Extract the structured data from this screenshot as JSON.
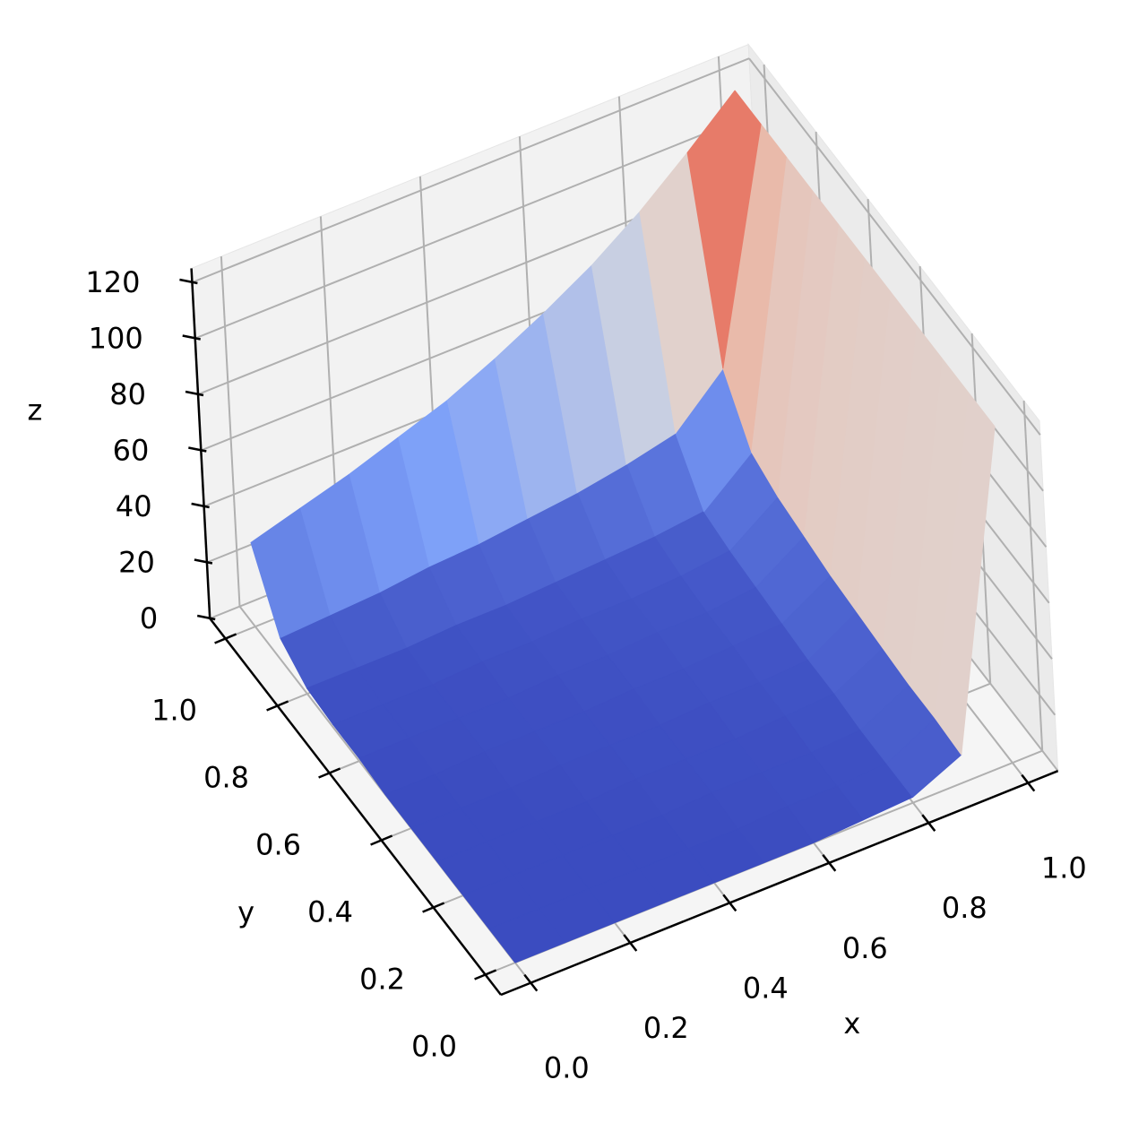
{
  "chart_data": {
    "type": "surface3d",
    "xlabel": "x",
    "ylabel": "y",
    "zlabel": "z",
    "colormap": "coolwarm",
    "grid": true,
    "x": [
      0,
      0.1,
      0.2,
      0.3,
      0.4,
      0.5,
      0.6,
      0.7,
      0.8,
      0.9,
      1
    ],
    "y": [
      0,
      0.1,
      0.2,
      0.3,
      0.4,
      0.5,
      0.6,
      0.7,
      0.8,
      0.9,
      1
    ],
    "z": [
      [
        0,
        0,
        0,
        0,
        0,
        0,
        0,
        1,
        2,
        10,
        120
      ],
      [
        0,
        0,
        0,
        0,
        0,
        0,
        1,
        1,
        2,
        11,
        120
      ],
      [
        0,
        0,
        0,
        0,
        0,
        1,
        1,
        1,
        2,
        11,
        120
      ],
      [
        0,
        0,
        0,
        0,
        1,
        1,
        1,
        2,
        3,
        12,
        120
      ],
      [
        0,
        0,
        0,
        1,
        1,
        1,
        2,
        2,
        3,
        13,
        120
      ],
      [
        0,
        0,
        1,
        1,
        1,
        2,
        2,
        3,
        4,
        14,
        120
      ],
      [
        1,
        1,
        1,
        1,
        2,
        2,
        3,
        3,
        5,
        16,
        120
      ],
      [
        1,
        1,
        1,
        2,
        2,
        3,
        3,
        4,
        6,
        18,
        120
      ],
      [
        2,
        2,
        2,
        3,
        3,
        4,
        5,
        6,
        8,
        22,
        120
      ],
      [
        8,
        9,
        10,
        12,
        13,
        15,
        17,
        20,
        24,
        40,
        120
      ],
      [
        30,
        35,
        40,
        46,
        52,
        60,
        69,
        79,
        91,
        105,
        120
      ]
    ],
    "xlim": [
      -0.06,
      1.06
    ],
    "ylim": [
      -0.06,
      1.06
    ],
    "zlim": [
      0,
      125
    ],
    "xticks": [
      {
        "value": 0,
        "label": "0.0"
      },
      {
        "value": 0.2,
        "label": "0.2"
      },
      {
        "value": 0.4,
        "label": "0.4"
      },
      {
        "value": 0.6,
        "label": "0.6"
      },
      {
        "value": 0.8,
        "label": "0.8"
      },
      {
        "value": 1,
        "label": "1.0"
      }
    ],
    "yticks": [
      {
        "value": 0,
        "label": "0.0"
      },
      {
        "value": 0.2,
        "label": "0.2"
      },
      {
        "value": 0.4,
        "label": "0.4"
      },
      {
        "value": 0.6,
        "label": "0.6"
      },
      {
        "value": 0.8,
        "label": "0.8"
      },
      {
        "value": 1,
        "label": "1.0"
      }
    ],
    "zticks": [
      0,
      20,
      40,
      60,
      80,
      100,
      120
    ]
  }
}
